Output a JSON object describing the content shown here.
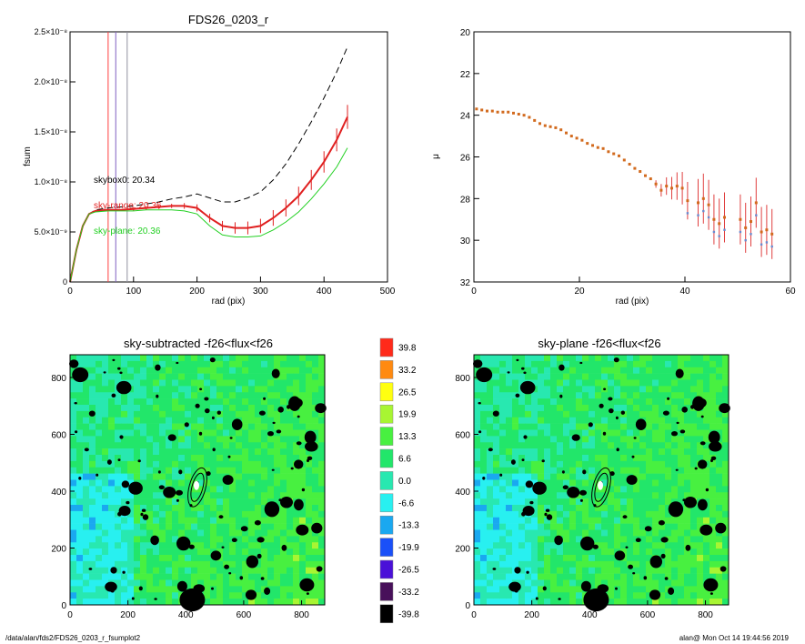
{
  "footer": {
    "path": "/data/alan/fds2/FDS26_0203_r_fsumplot2",
    "user_stamp": "alan@  Mon Oct 14 19:44:56 2019"
  },
  "colorbar": {
    "levels": [
      "39.8",
      "33.2",
      "26.5",
      "19.9",
      "13.3",
      "6.6",
      "0.0",
      "-6.6",
      "-13.3",
      "-19.9",
      "-26.5",
      "-33.2",
      "-39.8"
    ],
    "colors": [
      "#ff2a1a",
      "#ff8a10",
      "#ffff10",
      "#a8f532",
      "#48f040",
      "#22e66a",
      "#28e8b0",
      "#28f0f0",
      "#1aa8f0",
      "#1a50f8",
      "#4a10d8",
      "#48105a",
      "#000000"
    ]
  },
  "chart_data": [
    {
      "type": "line",
      "title": "FDS26_0203_r",
      "xlabel": "rad (pix)",
      "ylabel": "fsum",
      "xlim": [
        0,
        500
      ],
      "ylim": [
        0,
        2.5e-08
      ],
      "x_ticks": [
        "0",
        "100",
        "200",
        "300",
        "400",
        "500"
      ],
      "y_ticks": [
        "0",
        "5.0×10⁻⁹",
        "1.0×10⁻⁸",
        "1.5×10⁻⁸",
        "2.0×10⁻⁸",
        "2.5×10⁻⁸"
      ],
      "y_tick_values": [
        0,
        5e-09,
        1e-08,
        1.5e-08,
        2e-08,
        2.5e-08
      ],
      "annotations": [
        {
          "text": "skybox0: 20.34",
          "color": "#000000"
        },
        {
          "text": "sky-range: 20.36",
          "color": "#e02020"
        },
        {
          "text": "sky-plane: 20.36",
          "color": "#22d022"
        }
      ],
      "vertical_lines": [
        {
          "x": 60,
          "color": "#ff4040"
        },
        {
          "x": 72,
          "color": "#8060c0"
        },
        {
          "x": 90,
          "color": "#9090a0"
        }
      ],
      "series": [
        {
          "style": "dashed",
          "color": "#000000",
          "x": [
            0,
            10,
            20,
            30,
            40,
            60,
            80,
            100,
            120,
            140,
            160,
            180,
            200,
            220,
            240,
            260,
            280,
            300,
            320,
            340,
            360,
            380,
            400,
            420,
            437
          ],
          "y": [
            0,
            3.2e-09,
            5.6e-09,
            6.8e-09,
            7.2e-09,
            7.4e-09,
            7.5e-09,
            7.6e-09,
            7.8e-09,
            8e-09,
            8.3e-09,
            8.5e-09,
            8.8e-09,
            8.4e-09,
            8e-09,
            8e-09,
            8.4e-09,
            9e-09,
            1.02e-08,
            1.18e-08,
            1.38e-08,
            1.6e-08,
            1.84e-08,
            2.1e-08,
            2.35e-08
          ]
        },
        {
          "style": "solid",
          "color": "#e02020",
          "x": [
            0,
            10,
            20,
            30,
            40,
            60,
            80,
            100,
            120,
            140,
            160,
            180,
            200,
            220,
            240,
            260,
            280,
            300,
            320,
            340,
            360,
            380,
            400,
            420,
            437
          ],
          "y": [
            0,
            3.2e-09,
            5.6e-09,
            6.8e-09,
            7.1e-09,
            7.2e-09,
            7.2e-09,
            7.3e-09,
            7.4e-09,
            7.5e-09,
            7.6e-09,
            7.6e-09,
            7.4e-09,
            6.4e-09,
            5.6e-09,
            5.4e-09,
            5.4e-09,
            5.6e-09,
            6.4e-09,
            7.4e-09,
            8.6e-09,
            1.02e-08,
            1.2e-08,
            1.42e-08,
            1.65e-08
          ]
        },
        {
          "style": "solid",
          "color": "#22d022",
          "x": [
            0,
            10,
            20,
            30,
            40,
            60,
            80,
            100,
            120,
            140,
            160,
            180,
            200,
            220,
            240,
            260,
            280,
            300,
            320,
            340,
            360,
            380,
            400,
            420,
            437
          ],
          "y": [
            0,
            3.2e-09,
            5.6e-09,
            6.8e-09,
            7e-09,
            7.1e-09,
            7.1e-09,
            7.1e-09,
            7.2e-09,
            7.2e-09,
            7.2e-09,
            7.1e-09,
            6.8e-09,
            5.6e-09,
            4.7e-09,
            4.5e-09,
            4.5e-09,
            4.6e-09,
            5.2e-09,
            6e-09,
            7e-09,
            8.3e-09,
            9.8e-09,
            1.15e-08,
            1.34e-08
          ]
        }
      ]
    },
    {
      "type": "scatter",
      "xlabel": "rad (pix)",
      "ylabel": "μ",
      "xlim": [
        0,
        60
      ],
      "ylim": [
        32,
        20
      ],
      "x_ticks": [
        "0",
        "20",
        "40",
        "60"
      ],
      "y_ticks": [
        "20",
        "22",
        "24",
        "26",
        "28",
        "30",
        "32"
      ],
      "points": [
        [
          0.5,
          23.7
        ],
        [
          1.5,
          23.75
        ],
        [
          2.5,
          23.8
        ],
        [
          3.5,
          23.8
        ],
        [
          4.5,
          23.85
        ],
        [
          5.5,
          23.85
        ],
        [
          6.5,
          23.85
        ],
        [
          7.5,
          23.9
        ],
        [
          8.5,
          23.95
        ],
        [
          9.5,
          24.0
        ],
        [
          10.5,
          24.1
        ],
        [
          11.5,
          24.25
        ],
        [
          12.5,
          24.4
        ],
        [
          13.5,
          24.5
        ],
        [
          14.5,
          24.55
        ],
        [
          15.5,
          24.6
        ],
        [
          16.5,
          24.7
        ],
        [
          17.5,
          24.85
        ],
        [
          18.5,
          25.0
        ],
        [
          19.5,
          25.1
        ],
        [
          20.5,
          25.2
        ],
        [
          21.5,
          25.35
        ],
        [
          22.5,
          25.45
        ],
        [
          23.5,
          25.55
        ],
        [
          24.5,
          25.6
        ],
        [
          25.5,
          25.75
        ],
        [
          26.5,
          25.85
        ],
        [
          27.5,
          25.95
        ],
        [
          28.5,
          26.15
        ],
        [
          29.5,
          26.35
        ],
        [
          30.5,
          26.55
        ],
        [
          31.5,
          26.7
        ],
        [
          32.5,
          26.9
        ],
        [
          33.5,
          27.05
        ],
        [
          34.5,
          27.3
        ],
        [
          35.5,
          27.6
        ],
        [
          36.5,
          27.4
        ],
        [
          37.5,
          27.5
        ],
        [
          38.5,
          27.4
        ],
        [
          39.5,
          27.5
        ],
        [
          40.5,
          28.1
        ],
        [
          42.5,
          28.2
        ],
        [
          43.5,
          28.0
        ],
        [
          44.5,
          28.3
        ],
        [
          45.5,
          29.0
        ],
        [
          46.5,
          29.2
        ],
        [
          47.5,
          28.9
        ],
        [
          50.5,
          29.0
        ],
        [
          51.5,
          29.4
        ],
        [
          52.5,
          29.1
        ],
        [
          53.5,
          28.2
        ],
        [
          54.5,
          29.6
        ],
        [
          55.5,
          29.5
        ],
        [
          56.5,
          29.7
        ]
      ]
    },
    {
      "type": "heatmap",
      "title": "sky-subtracted -f26<flux<f26",
      "xlim": [
        0,
        880
      ],
      "ylim": [
        0,
        880
      ],
      "x_ticks": [
        "0",
        "200",
        "400",
        "600",
        "800"
      ],
      "y_ticks": [
        "0",
        "200",
        "400",
        "600",
        "800"
      ]
    },
    {
      "type": "heatmap",
      "title": "sky-plane -f26<flux<f26",
      "xlim": [
        0,
        880
      ],
      "ylim": [
        0,
        880
      ],
      "x_ticks": [
        "0",
        "200",
        "400",
        "600",
        "800"
      ],
      "y_ticks": [
        "0",
        "200",
        "400",
        "600",
        "800"
      ]
    }
  ]
}
